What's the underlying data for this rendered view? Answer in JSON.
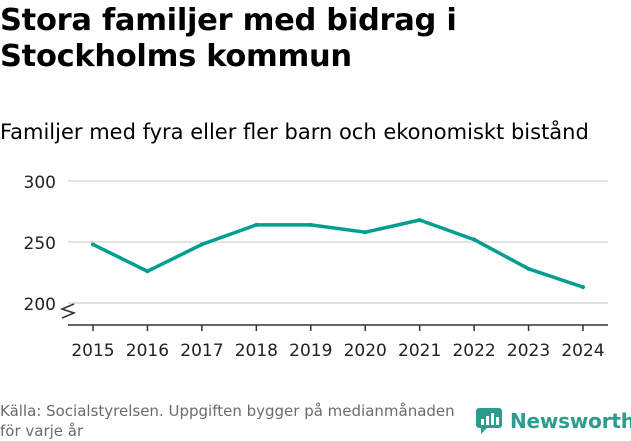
{
  "header": {
    "title": "Stora familjer med bidrag i Stockholms kommun",
    "subtitle": "Familjer med fyra eller fler barn och ekonomiskt bistånd"
  },
  "footer": {
    "source": "Källa: Socialstyrelsen. Uppgiften bygger på medianmånaden för varje år",
    "brand": "Newsworthy",
    "brand_icon": "newsworthy-logo-icon"
  },
  "colors": {
    "line": "#009e8f",
    "grid": "#d9d9d9",
    "axis": "#333333",
    "brand": "#2a9d8f"
  },
  "chart_data": {
    "type": "line",
    "title": "Stora familjer med bidrag i Stockholms kommun",
    "subtitle": "Familjer med fyra eller fler barn och ekonomiskt bistånd",
    "xlabel": "",
    "ylabel": "",
    "categories": [
      "2015",
      "2016",
      "2017",
      "2018",
      "2019",
      "2020",
      "2021",
      "2022",
      "2023",
      "2024"
    ],
    "series": [
      {
        "name": "Familjer med fyra eller fler barn och ekonomiskt bistånd",
        "values": [
          248,
          226,
          248,
          264,
          264,
          258,
          268,
          252,
          228,
          213
        ]
      }
    ],
    "yticks": [
      200,
      250,
      300
    ],
    "ytick_labels": [
      "200",
      "250",
      "300"
    ],
    "ylim": [
      190,
      300
    ],
    "axis_break": true,
    "grid": true
  }
}
